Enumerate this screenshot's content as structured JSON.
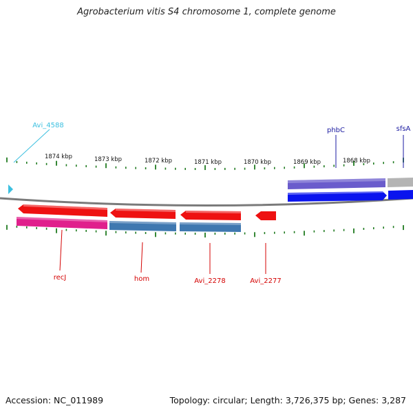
{
  "title": "Agrobacterium vitis S4 chromosome 1, complete genome",
  "footer": {
    "accession": "Accession: NC_011989",
    "summary": "Topology: circular; Length: 3,726,375 bp; Genes: 3,287"
  },
  "colors": {
    "tick": "#1f7a1f",
    "backbone": "#7a7a7a",
    "cyan_label": "#3cc0e0",
    "blue_label": "#1a1aa0",
    "red_label": "#d40000",
    "red_gene": "#ee1111",
    "magenta_gene": "#e0208c",
    "steel_gene": "#3f78b0",
    "purple_gene": "#6a5ccc",
    "blue_gene": "#0a14ee",
    "gray_gene": "#b4b4b4"
  },
  "kbp_labels": [
    "1874 kbp",
    "1873 kbp",
    "1872 kbp",
    "1871 kbp",
    "1870 kbp",
    "1869 kbp",
    "1868 kbp"
  ],
  "gene_labels": {
    "top": [
      {
        "text": "Avi_4588",
        "color": "cyan_label"
      },
      {
        "text": "phbC",
        "color": "blue_label"
      },
      {
        "text": "sfsA",
        "color": "blue_label"
      }
    ],
    "bottom": [
      {
        "text": "recJ",
        "color": "red_label"
      },
      {
        "text": "hom",
        "color": "red_label"
      },
      {
        "text": "Avi_2278",
        "color": "red_label"
      },
      {
        "text": "Avi_2277",
        "color": "red_label"
      }
    ]
  }
}
